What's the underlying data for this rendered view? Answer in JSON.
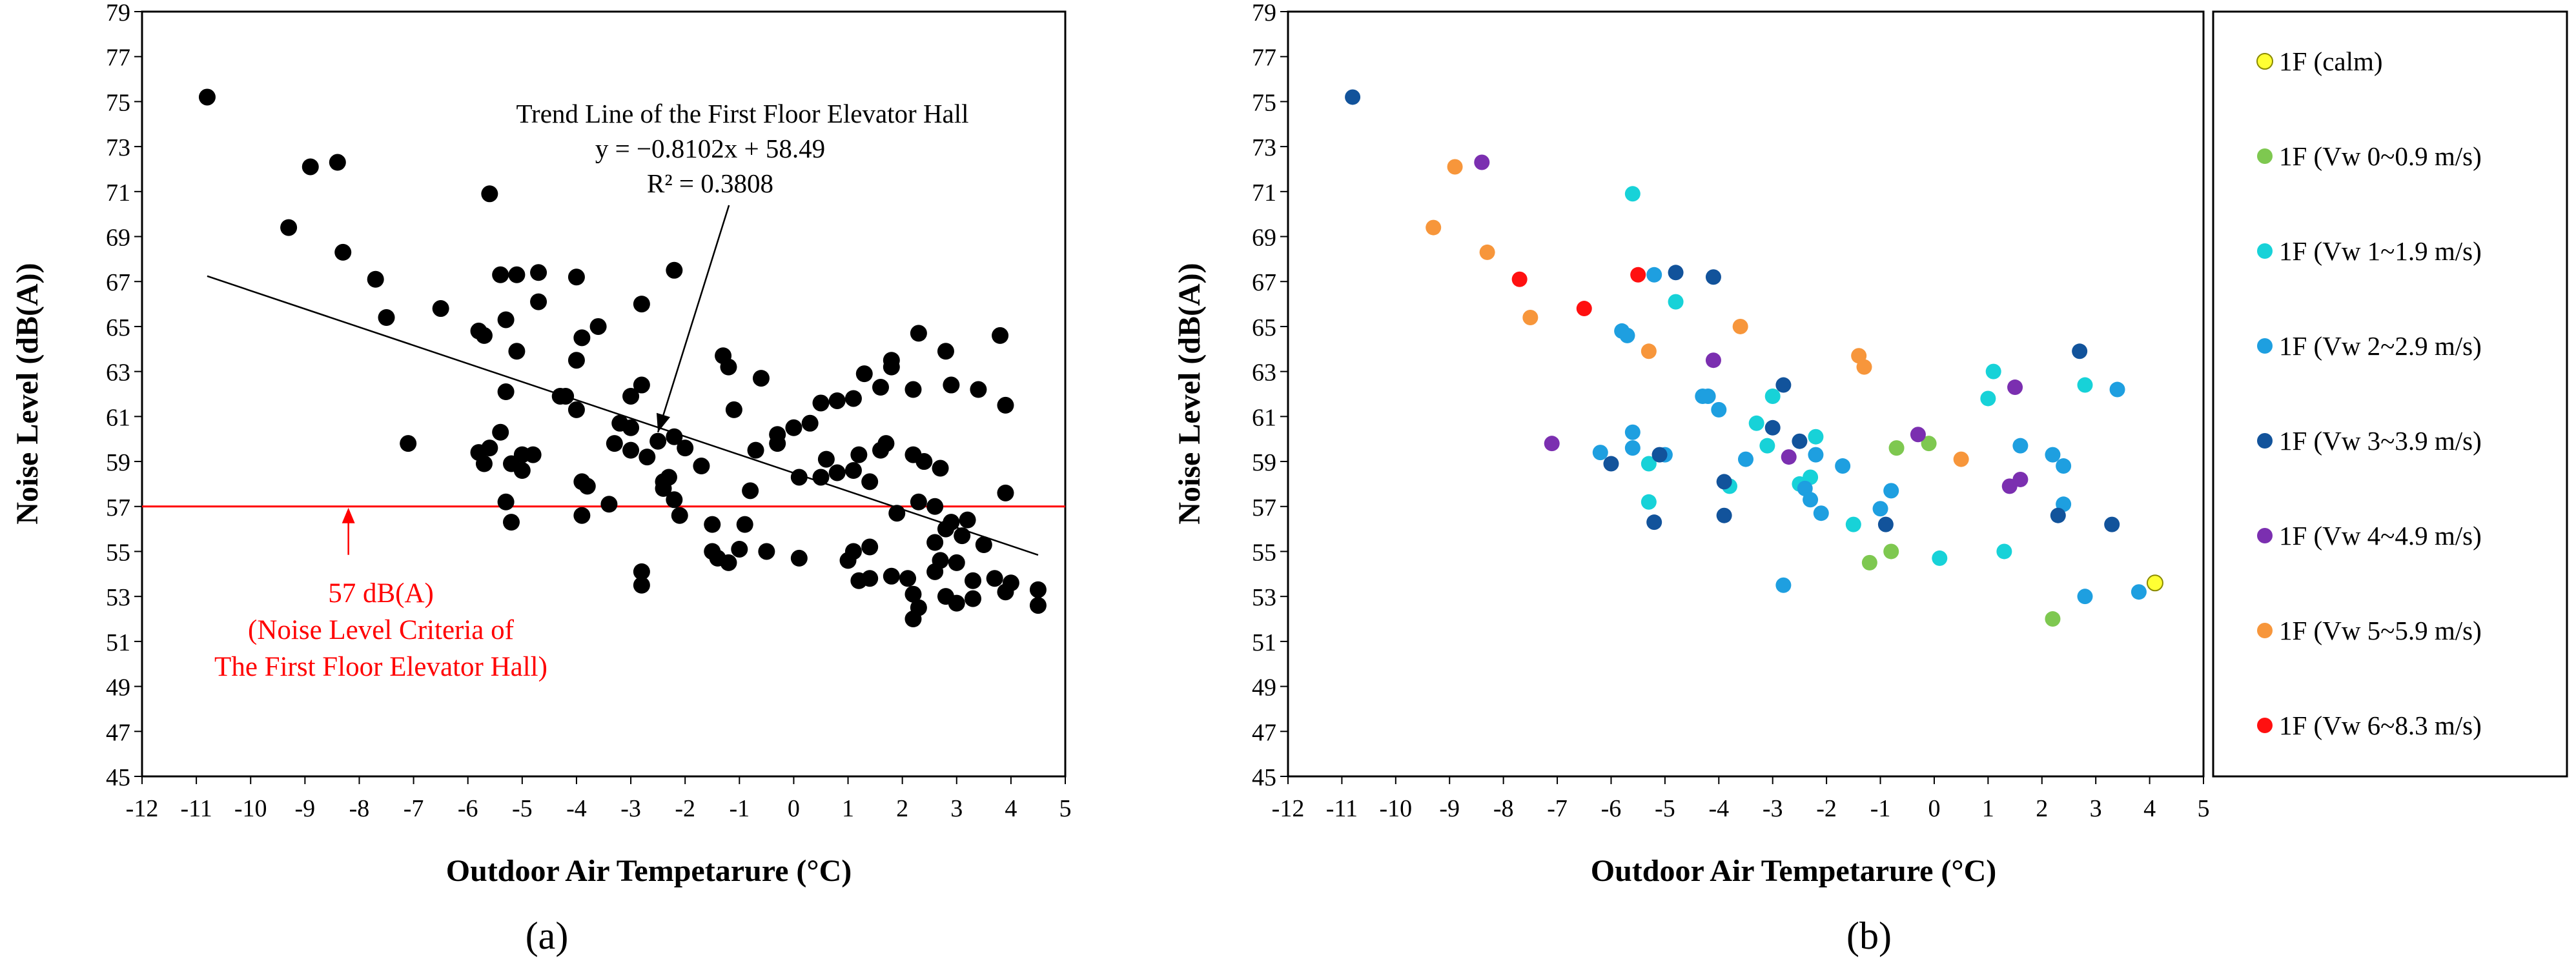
{
  "chart_data": [
    {
      "type": "scatter",
      "panel_label": "(a)",
      "xlabel": "Outdoor Air Tempetarure (°C)",
      "ylabel": "Noise Level (dB(A))",
      "xlim": [
        -12,
        5
      ],
      "ylim": [
        45,
        79
      ],
      "xticks": [
        -12,
        -11,
        -10,
        -9,
        -8,
        -7,
        -6,
        -5,
        -4,
        -3,
        -2,
        -1,
        0,
        1,
        2,
        3,
        4,
        5
      ],
      "yticks": [
        45,
        47,
        49,
        51,
        53,
        55,
        57,
        59,
        61,
        63,
        65,
        67,
        69,
        71,
        73,
        75,
        77,
        79
      ],
      "point_color": "#000000",
      "trend_line": {
        "x_range": [
          -10.8,
          4.5
        ],
        "slope": -0.8102,
        "intercept": 58.49,
        "color": "#000000",
        "annotation": [
          "Trend Line of the First Floor Elevator Hall",
          "y = −0.8102x + 58.49",
          "R² = 0.3808"
        ],
        "arrow_tip": [
          -2.5,
          60.3
        ]
      },
      "criteria_line": {
        "y": 57,
        "color": "#ff0000",
        "annotation": [
          "57 dB(A)",
          "(Noise Level Criteria of",
          "The First Floor Elevator Hall)"
        ],
        "arrow_x": -8.2
      },
      "points": [
        [
          -10.8,
          75.2
        ],
        [
          -8.4,
          72.3
        ],
        [
          -8.9,
          72.1
        ],
        [
          -5.6,
          70.9
        ],
        [
          -9.3,
          69.4
        ],
        [
          -8.3,
          68.3
        ],
        [
          -7.7,
          67.1
        ],
        [
          -5.4,
          67.3
        ],
        [
          -5.1,
          67.3
        ],
        [
          -4.7,
          67.4
        ],
        [
          -4.0,
          67.2
        ],
        [
          -2.2,
          67.5
        ],
        [
          -6.5,
          65.8
        ],
        [
          -7.5,
          65.4
        ],
        [
          -4.7,
          66.1
        ],
        [
          -2.8,
          66.0
        ],
        [
          -5.3,
          65.3
        ],
        [
          -5.8,
          64.8
        ],
        [
          -5.7,
          64.6
        ],
        [
          -3.6,
          65.0
        ],
        [
          -5.1,
          63.9
        ],
        [
          -3.9,
          64.5
        ],
        [
          -1.3,
          63.7
        ],
        [
          -4.0,
          63.5
        ],
        [
          -1.2,
          63.2
        ],
        [
          -0.6,
          62.7
        ],
        [
          -5.3,
          62.1
        ],
        [
          -4.3,
          61.9
        ],
        [
          -4.2,
          61.9
        ],
        [
          -3.0,
          61.9
        ],
        [
          -2.8,
          62.4
        ],
        [
          -4.0,
          61.3
        ],
        [
          -1.1,
          61.3
        ],
        [
          -3.2,
          60.7
        ],
        [
          -3.0,
          60.5
        ],
        [
          -2.5,
          59.9
        ],
        [
          -2.2,
          60.1
        ],
        [
          -0.3,
          60.2
        ],
        [
          -3.3,
          59.8
        ],
        [
          -2.0,
          59.6
        ],
        [
          -3.0,
          59.5
        ],
        [
          -1.7,
          58.8
        ],
        [
          -5.4,
          60.3
        ],
        [
          -7.1,
          59.8
        ],
        [
          -5.8,
          59.4
        ],
        [
          -4.8,
          59.3
        ],
        [
          -5.6,
          59.6
        ],
        [
          -5.0,
          59.3
        ],
        [
          -5.7,
          58.9
        ],
        [
          -5.0,
          58.6
        ],
        [
          -5.2,
          58.9
        ],
        [
          -2.7,
          59.2
        ],
        [
          -2.3,
          58.3
        ],
        [
          -2.4,
          58.1
        ],
        [
          -2.4,
          57.8
        ],
        [
          -0.8,
          57.7
        ],
        [
          -3.9,
          58.1
        ],
        [
          -3.8,
          57.9
        ],
        [
          -2.2,
          57.3
        ],
        [
          -2.1,
          56.6
        ],
        [
          -3.4,
          57.1
        ],
        [
          -3.9,
          56.6
        ],
        [
          -5.3,
          57.2
        ],
        [
          -5.2,
          56.3
        ],
        [
          -1.5,
          56.2
        ],
        [
          -0.9,
          56.2
        ],
        [
          -1.5,
          55.0
        ],
        [
          -1.4,
          54.7
        ],
        [
          -1.0,
          55.1
        ],
        [
          -0.5,
          55.0
        ],
        [
          0.1,
          54.7
        ],
        [
          -2.8,
          54.1
        ],
        [
          -2.8,
          53.5
        ],
        [
          -1.2,
          54.5
        ],
        [
          -0.3,
          59.8
        ],
        [
          -0.7,
          59.5
        ],
        [
          0.0,
          60.5
        ],
        [
          0.5,
          61.6
        ],
        [
          0.8,
          61.7
        ],
        [
          1.1,
          61.8
        ],
        [
          1.3,
          62.9
        ],
        [
          1.6,
          62.3
        ],
        [
          1.8,
          63.2
        ],
        [
          2.2,
          62.2
        ],
        [
          2.3,
          64.7
        ],
        [
          2.8,
          63.9
        ],
        [
          3.4,
          62.2
        ],
        [
          3.8,
          64.6
        ],
        [
          3.9,
          61.5
        ],
        [
          1.8,
          63.5
        ],
        [
          2.9,
          62.4
        ],
        [
          0.1,
          58.3
        ],
        [
          0.3,
          60.7
        ],
        [
          0.6,
          59.1
        ],
        [
          0.8,
          58.5
        ],
        [
          1.1,
          58.6
        ],
        [
          1.4,
          58.1
        ],
        [
          1.6,
          59.5
        ],
        [
          1.7,
          59.8
        ],
        [
          1.2,
          59.3
        ],
        [
          2.4,
          59.0
        ],
        [
          2.7,
          58.7
        ],
        [
          2.2,
          59.3
        ],
        [
          1.9,
          56.7
        ],
        [
          2.3,
          57.2
        ],
        [
          2.6,
          57.0
        ],
        [
          2.9,
          56.3
        ],
        [
          3.2,
          56.4
        ],
        [
          2.8,
          56.0
        ],
        [
          3.1,
          55.7
        ],
        [
          3.5,
          55.3
        ],
        [
          2.6,
          55.4
        ],
        [
          3.0,
          54.5
        ],
        [
          3.3,
          53.7
        ],
        [
          3.7,
          53.8
        ],
        [
          4.0,
          53.6
        ],
        [
          4.5,
          53.3
        ],
        [
          3.9,
          53.2
        ],
        [
          3.3,
          52.9
        ],
        [
          2.8,
          53.0
        ],
        [
          3.0,
          52.7
        ],
        [
          2.2,
          53.1
        ],
        [
          2.3,
          52.5
        ],
        [
          2.2,
          52.0
        ],
        [
          4.5,
          52.6
        ],
        [
          1.4,
          53.8
        ],
        [
          1.8,
          53.9
        ],
        [
          2.1,
          53.8
        ],
        [
          2.7,
          54.6
        ],
        [
          2.6,
          54.1
        ],
        [
          1.0,
          54.6
        ],
        [
          1.2,
          53.7
        ],
        [
          1.1,
          55.0
        ],
        [
          0.5,
          58.3
        ],
        [
          1.4,
          55.2
        ],
        [
          3.9,
          57.6
        ]
      ]
    },
    {
      "type": "scatter",
      "panel_label": "(b)",
      "xlabel": "Outdoor Air Tempetarure (°C)",
      "ylabel": "Noise Level (dB(A))",
      "xlim": [
        -12,
        5
      ],
      "ylim": [
        45,
        79
      ],
      "xticks": [
        -12,
        -11,
        -10,
        -9,
        -8,
        -7,
        -6,
        -5,
        -4,
        -3,
        -2,
        -1,
        0,
        1,
        2,
        3,
        4,
        5
      ],
      "yticks": [
        45,
        47,
        49,
        51,
        53,
        55,
        57,
        59,
        61,
        63,
        65,
        67,
        69,
        71,
        73,
        75,
        77,
        79
      ],
      "legend_position": "right",
      "series": [
        {
          "name": "1F (calm)",
          "color": "#ffff33",
          "stroke": "#8a8a00",
          "points": [
            [
              4.1,
              53.6
            ]
          ]
        },
        {
          "name": "1F (Vw 0~0.9 m/s)",
          "color": "#7ec850",
          "points": [
            [
              -0.7,
              59.6
            ],
            [
              -0.1,
              59.8
            ],
            [
              -1.2,
              54.5
            ],
            [
              -0.8,
              55.0
            ],
            [
              2.2,
              52.0
            ]
          ]
        },
        {
          "name": "1F (Vw 1~1.9 m/s)",
          "color": "#17d2d8",
          "points": [
            [
              -5.6,
              70.9
            ],
            [
              -4.8,
              66.1
            ],
            [
              -3.8,
              57.9
            ],
            [
              -3.1,
              59.7
            ],
            [
              -3.0,
              61.9
            ],
            [
              -3.3,
              60.7
            ],
            [
              -2.2,
              60.1
            ],
            [
              -2.3,
              58.3
            ],
            [
              -2.5,
              58.0
            ],
            [
              -5.3,
              57.2
            ],
            [
              -5.3,
              58.9
            ],
            [
              -1.5,
              56.2
            ],
            [
              0.1,
              54.7
            ],
            [
              1.0,
              61.8
            ],
            [
              1.1,
              63.0
            ],
            [
              1.3,
              55.0
            ],
            [
              2.8,
              62.4
            ]
          ]
        },
        {
          "name": "1F (Vw 2~2.9 m/s)",
          "color": "#1e9fe0",
          "points": [
            [
              -5.2,
              67.3
            ],
            [
              -5.8,
              64.8
            ],
            [
              -5.7,
              64.6
            ],
            [
              -4.3,
              61.9
            ],
            [
              -4.2,
              61.9
            ],
            [
              -4.0,
              61.3
            ],
            [
              -6.2,
              59.4
            ],
            [
              -5.6,
              59.6
            ],
            [
              -5.0,
              59.3
            ],
            [
              -5.6,
              60.3
            ],
            [
              -2.8,
              53.5
            ],
            [
              -3.5,
              59.1
            ],
            [
              -2.2,
              59.3
            ],
            [
              -2.4,
              57.8
            ],
            [
              -2.3,
              57.3
            ],
            [
              -2.1,
              56.7
            ],
            [
              -1.7,
              58.8
            ],
            [
              -1.0,
              56.9
            ],
            [
              -0.8,
              57.7
            ],
            [
              1.6,
              59.7
            ],
            [
              2.2,
              59.3
            ],
            [
              2.4,
              58.8
            ],
            [
              2.4,
              57.1
            ],
            [
              2.8,
              53.0
            ],
            [
              3.4,
              62.2
            ],
            [
              3.8,
              53.2
            ]
          ]
        },
        {
          "name": "1F (Vw 3~3.9 m/s)",
          "color": "#12539b",
          "points": [
            [
              -10.8,
              75.2
            ],
            [
              -4.8,
              67.4
            ],
            [
              -4.1,
              67.2
            ],
            [
              -2.8,
              62.4
            ],
            [
              -3.0,
              60.5
            ],
            [
              -2.5,
              59.9
            ],
            [
              -3.9,
              58.1
            ],
            [
              -3.9,
              56.6
            ],
            [
              -5.2,
              56.3
            ],
            [
              -5.1,
              59.3
            ],
            [
              -6.0,
              58.9
            ],
            [
              -0.9,
              56.2
            ],
            [
              2.3,
              56.6
            ],
            [
              2.7,
              63.9
            ],
            [
              3.3,
              56.2
            ]
          ]
        },
        {
          "name": "1F (Vw 4~4.9 m/s)",
          "color": "#7b2fb0",
          "points": [
            [
              -8.4,
              72.3
            ],
            [
              -7.1,
              59.8
            ],
            [
              -4.1,
              63.5
            ],
            [
              -2.7,
              59.2
            ],
            [
              -0.3,
              60.2
            ],
            [
              1.5,
              62.3
            ],
            [
              1.6,
              58.2
            ],
            [
              1.4,
              57.9
            ]
          ]
        },
        {
          "name": "1F (Vw 5~5.9 m/s)",
          "color": "#f7963b",
          "points": [
            [
              -8.9,
              72.1
            ],
            [
              -9.3,
              69.4
            ],
            [
              -8.3,
              68.3
            ],
            [
              -7.5,
              65.4
            ],
            [
              -5.3,
              63.9
            ],
            [
              -3.6,
              65.0
            ],
            [
              -1.4,
              63.7
            ],
            [
              -1.3,
              63.2
            ],
            [
              0.5,
              59.1
            ]
          ]
        },
        {
          "name": "1F (Vw 6~8.3 m/s)",
          "color": "#ff1010",
          "points": [
            [
              -7.7,
              67.1
            ],
            [
              -6.5,
              65.8
            ],
            [
              -5.5,
              67.3
            ]
          ]
        }
      ]
    }
  ]
}
